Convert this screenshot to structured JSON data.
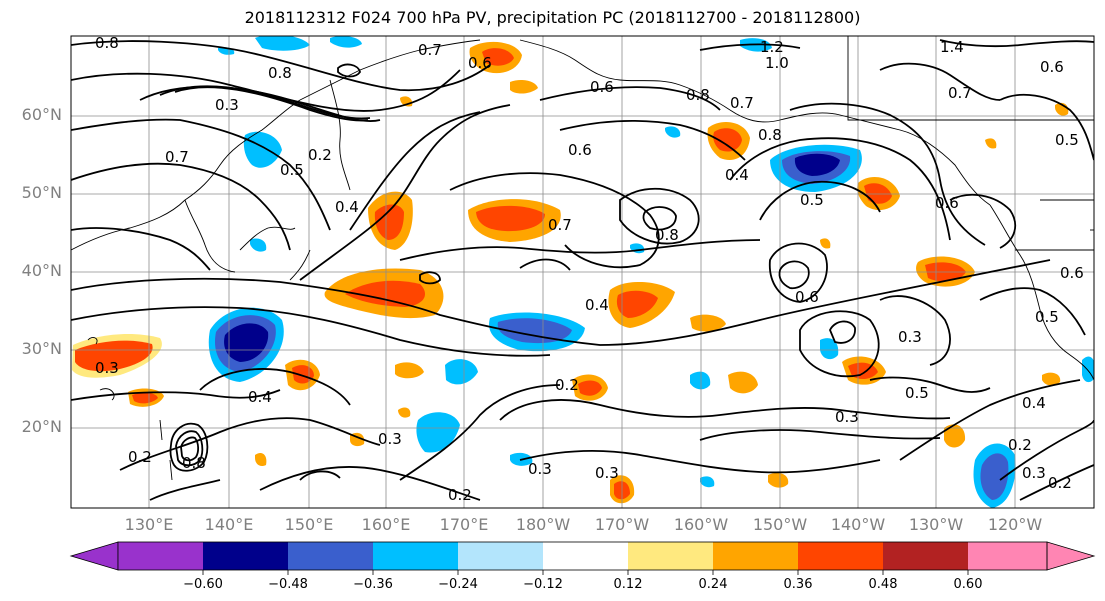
{
  "title": "2018112312 F024 700 hPa PV, precipitation PC (2018112700 - 2018112800)",
  "lat_labels": [
    "60°N",
    "50°N",
    "40°N",
    "30°N",
    "20°N"
  ],
  "lon_labels": [
    "130°E",
    "140°E",
    "150°E",
    "160°E",
    "170°E",
    "180°W",
    "170°W",
    "160°W",
    "150°W",
    "140°W",
    "130°W",
    "120°W"
  ],
  "colorbar": {
    "ticks": [
      "−0.60",
      "−0.48",
      "−0.36",
      "−0.24",
      "−0.12",
      "0.12",
      "0.24",
      "0.36",
      "0.48",
      "0.60"
    ],
    "colors": [
      "#9932cc",
      "#00008b",
      "#3a5fcd",
      "#00bfff",
      "#b3e5fc",
      "#ffffff",
      "#ffe97f",
      "#ffa500",
      "#ff4500",
      "#b22222",
      "#ff85b3"
    ]
  },
  "contour_labels": [
    "0.8",
    "0.7",
    "0.6",
    "1.2",
    "1.0",
    "1.4",
    "0.3",
    "0.8",
    "0.2",
    "0.7",
    "0.5",
    "0.6",
    "0.8",
    "0.7",
    "0.6",
    "0.4",
    "0.8",
    "0.5",
    "0.7",
    "0.6",
    "0.4",
    "0.5",
    "0.6",
    "0.7",
    "0.4",
    "0.4",
    "0.2",
    "0.3",
    "0.3",
    "0.8",
    "0.3",
    "0.3",
    "0.5",
    "0.3",
    "0.2",
    "0.4",
    "0.2",
    "0.3",
    "0.2",
    "0.3",
    "0.2",
    "0.6",
    "0.6",
    "0.5",
    "0.8"
  ]
}
